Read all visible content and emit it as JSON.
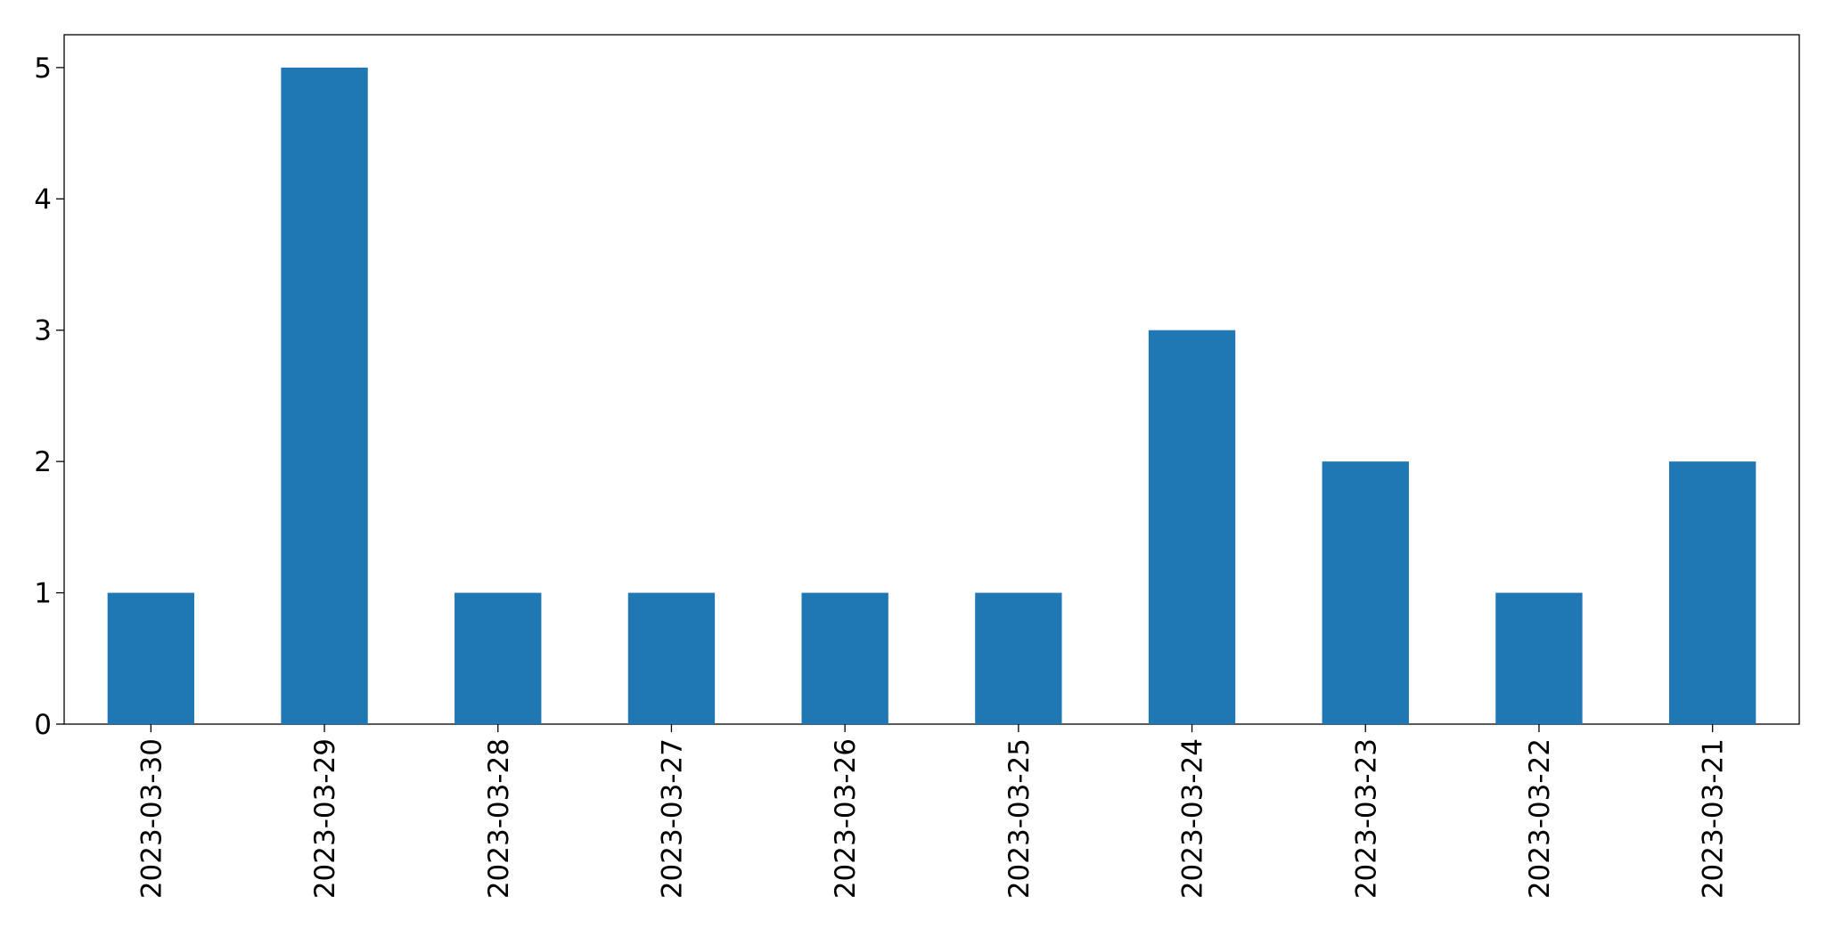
{
  "chart_data": {
    "type": "bar",
    "categories": [
      "2023-03-30",
      "2023-03-29",
      "2023-03-28",
      "2023-03-27",
      "2023-03-26",
      "2023-03-25",
      "2023-03-24",
      "2023-03-23",
      "2023-03-22",
      "2023-03-21"
    ],
    "values": [
      1,
      5,
      1,
      1,
      1,
      1,
      3,
      2,
      1,
      2
    ],
    "color": "#1f77b4",
    "ylim": [
      0,
      5.25
    ],
    "yticks": [
      0,
      1,
      2,
      3,
      4,
      5
    ],
    "grid": false
  }
}
